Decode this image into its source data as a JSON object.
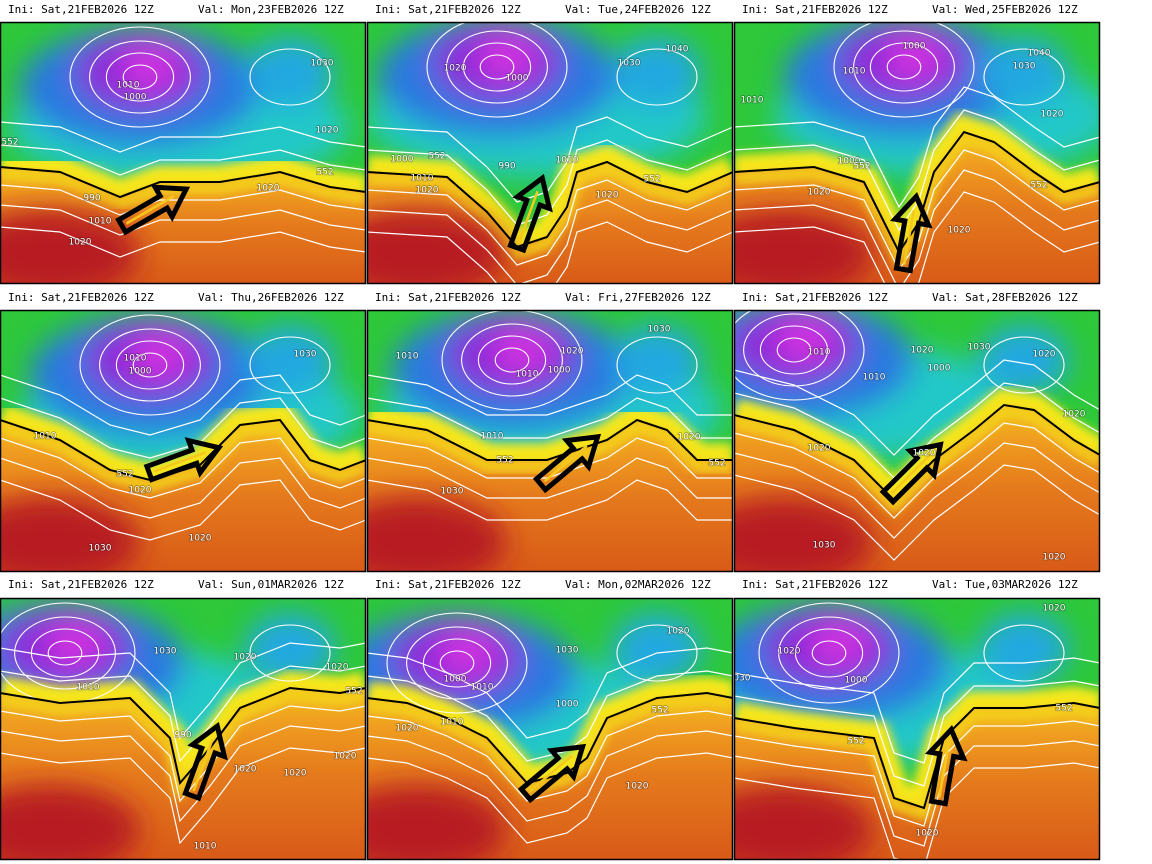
{
  "panels": [
    {
      "init": "Ini: Sat,21FEB2026 12Z",
      "valid": "Val: Mon,23FEB2026 12Z",
      "labels": [
        "1010",
        "1000",
        "1030",
        "1020",
        "552",
        "552",
        "990",
        "1010",
        "1020",
        "1020"
      ]
    },
    {
      "init": "Ini: Sat,21FEB2026 12Z",
      "valid": "Val: Tue,24FEB2026 12Z",
      "labels": [
        "1020",
        "1000",
        "1040",
        "1030",
        "1000",
        "552",
        "990",
        "1010",
        "1010",
        "1020",
        "552",
        "1020"
      ]
    },
    {
      "init": "Ini: Sat,21FEB2026 12Z",
      "valid": "Val: Wed,25FEB2026 12Z",
      "labels": [
        "1000",
        "1010",
        "1040",
        "1030",
        "1010",
        "1020",
        "1000",
        "552",
        "1020",
        "552",
        "1020"
      ]
    },
    {
      "init": "Ini: Sat,21FEB2026 12Z",
      "valid": "Val: Thu,26FEB2026 12Z",
      "labels": [
        "1010",
        "1000",
        "1030",
        "1010",
        "552",
        "1020",
        "1020",
        "1030"
      ]
    },
    {
      "init": "Ini: Sat,21FEB2026 12Z",
      "valid": "Val: Fri,27FEB2026 12Z",
      "labels": [
        "1010",
        "1020",
        "1030",
        "1000",
        "1010",
        "1010",
        "552",
        "1020",
        "552",
        "1030"
      ]
    },
    {
      "init": "Ini: Sat,21FEB2026 12Z",
      "valid": "Val: Sat,28FEB2026 12Z",
      "labels": [
        "1010",
        "1020",
        "1030",
        "1020",
        "1000",
        "1010",
        "1020",
        "1020",
        "1020",
        "1030",
        "1020"
      ]
    },
    {
      "init": "Ini: Sat,21FEB2026 12Z",
      "valid": "Val: Sun,01MAR2026 12Z",
      "labels": [
        "1030",
        "1020",
        "1020",
        "1010",
        "990",
        "1020",
        "1020",
        "1020",
        "552",
        "1010"
      ]
    },
    {
      "init": "Ini: Sat,21FEB2026 12Z",
      "valid": "Val: Mon,02MAR2026 12Z",
      "labels": [
        "1030",
        "1020",
        "1010",
        "1000",
        "1000",
        "552",
        "1010",
        "1020",
        "1020"
      ]
    },
    {
      "init": "Ini: Sat,21FEB2026 12Z",
      "valid": "Val: Tue,03MAR2026 12Z",
      "labels": [
        "1020",
        "1020",
        "1000",
        "552",
        "552",
        "1030",
        "1020"
      ]
    }
  ]
}
